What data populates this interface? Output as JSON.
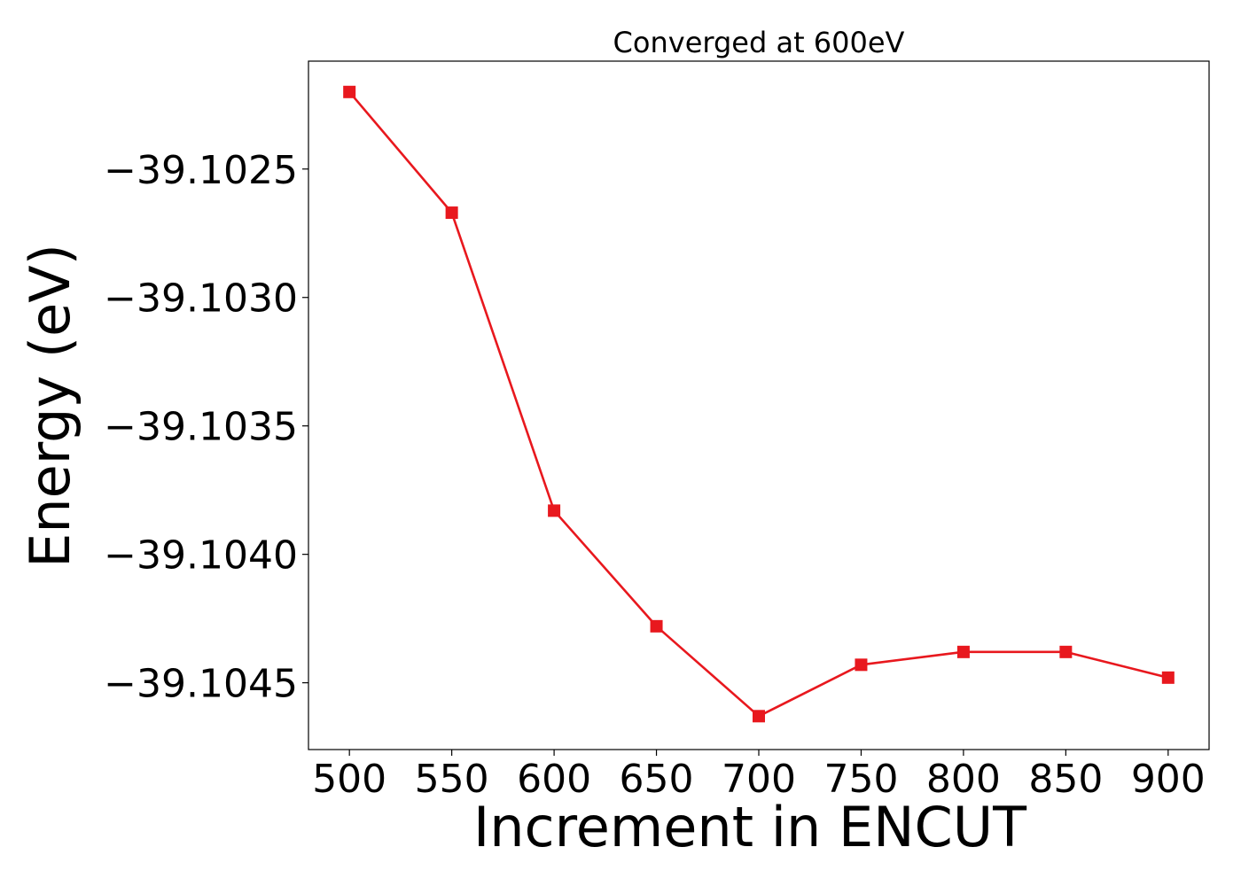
{
  "chart_data": {
    "type": "line",
    "title": "Converged at 600eV",
    "xlabel": "Increment in ENCUT",
    "ylabel": "Energy (eV)",
    "x": [
      500,
      550,
      600,
      650,
      700,
      750,
      800,
      850,
      900
    ],
    "x_tick_labels": [
      "500",
      "550",
      "600",
      "650",
      "700",
      "750",
      "800",
      "850",
      "900"
    ],
    "y_ticks": [
      -39.1025,
      -39.103,
      -39.1035,
      -39.104,
      -39.1045
    ],
    "y_tick_labels": [
      "−39.1025",
      "−39.1030",
      "−39.1035",
      "−39.1040",
      "−39.1045"
    ],
    "xlim": [
      480,
      920
    ],
    "ylim": [
      -39.10476,
      -39.10208
    ],
    "grid": false,
    "series": [
      {
        "values": [
          -39.1022,
          -39.10267,
          -39.10383,
          -39.10428,
          -39.10463,
          -39.10443,
          -39.10438,
          -39.10438,
          -39.10448
        ],
        "color": "#e8181e",
        "marker": "square"
      }
    ]
  }
}
